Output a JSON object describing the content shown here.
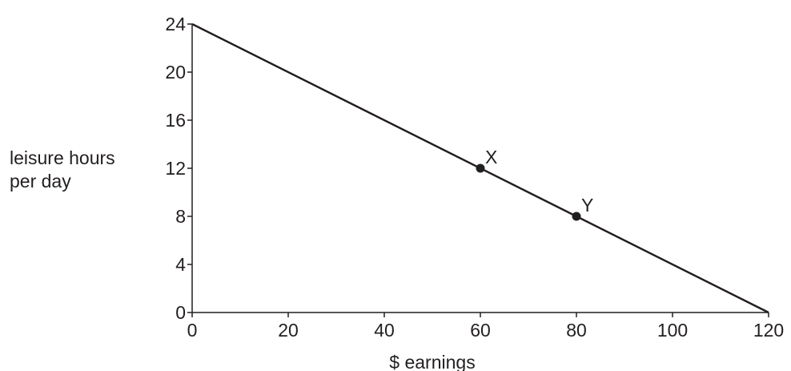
{
  "chart_data": {
    "type": "line",
    "xlabel": "$ earnings",
    "ylabel_lines": [
      "leisure hours",
      "per day"
    ],
    "xlim": [
      0,
      120
    ],
    "ylim": [
      0,
      24
    ],
    "x_ticks": [
      0,
      20,
      40,
      60,
      80,
      100,
      120
    ],
    "y_ticks": [
      0,
      4,
      8,
      12,
      16,
      20,
      24
    ],
    "grid": false,
    "series": [
      {
        "x": [
          0,
          120
        ],
        "y": [
          24,
          0
        ]
      }
    ],
    "points": [
      {
        "label": "X",
        "x": 60,
        "y": 12
      },
      {
        "label": "Y",
        "x": 80,
        "y": 8
      }
    ],
    "line_color": "#231f20"
  }
}
